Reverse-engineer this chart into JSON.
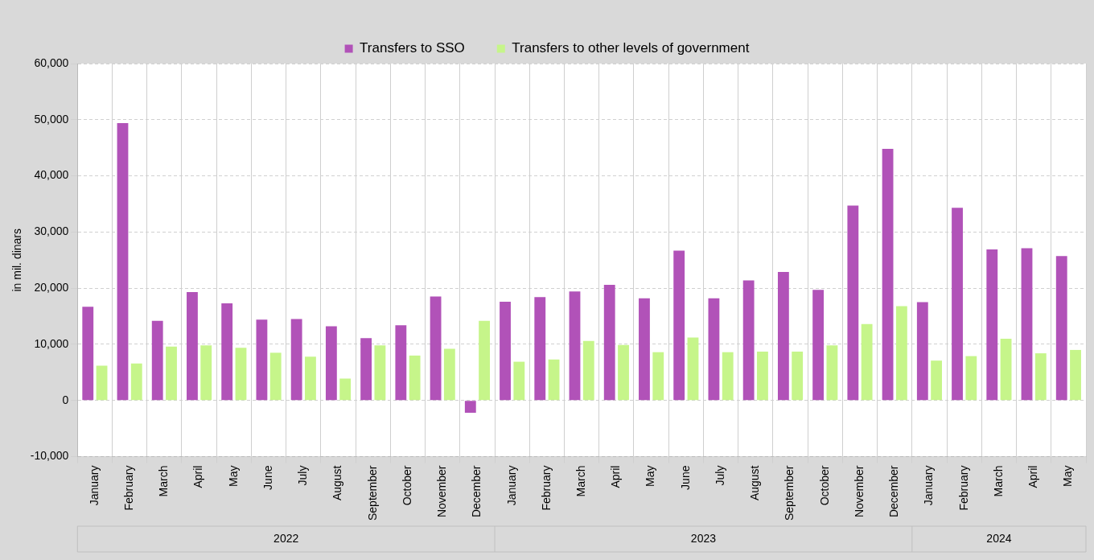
{
  "chart_data": {
    "type": "bar",
    "ylabel": "in mil. dinars",
    "categories": [
      "January",
      "February",
      "March",
      "April",
      "May",
      "June",
      "July",
      "August",
      "September",
      "October",
      "November",
      "December",
      "January",
      "February",
      "March",
      "April",
      "May",
      "June",
      "July",
      "August",
      "September",
      "October",
      "November",
      "December",
      "January",
      "February",
      "March",
      "April",
      "May"
    ],
    "series": [
      {
        "name": "Transfers to SSO",
        "color": "#b152b8",
        "values": [
          16700,
          49400,
          14200,
          19300,
          17300,
          14400,
          14500,
          13200,
          11100,
          13400,
          18500,
          -2200,
          17600,
          18400,
          19400,
          20600,
          18200,
          26700,
          18200,
          21400,
          22900,
          19700,
          34700,
          44800,
          17500,
          34300,
          26900,
          27100,
          25700
        ]
      },
      {
        "name": "Transfers to other levels of government",
        "color": "#c6f58a",
        "values": [
          6200,
          6600,
          9600,
          9800,
          9400,
          8500,
          7800,
          3900,
          9800,
          8000,
          9200,
          14200,
          6900,
          7300,
          10600,
          9900,
          8600,
          11200,
          8600,
          8700,
          8700,
          9800,
          13600,
          16800,
          7100,
          7900,
          11000,
          8400,
          9000
        ]
      }
    ],
    "ylim": [
      -10000,
      60000
    ],
    "yticks": [
      {
        "value": -10000,
        "label": "-10,000"
      },
      0,
      {
        "value": 10000,
        "label": "10,000"
      },
      {
        "value": 20000,
        "label": "20,000"
      },
      {
        "value": 30000,
        "label": "30,000"
      },
      {
        "value": 40000,
        "label": "40,000"
      },
      {
        "value": 50000,
        "label": "50,000"
      },
      {
        "value": 60000,
        "label": "60,000"
      }
    ],
    "grid": true,
    "legend": "top",
    "annotations": [
      "2022",
      "2023",
      "2024"
    ]
  }
}
